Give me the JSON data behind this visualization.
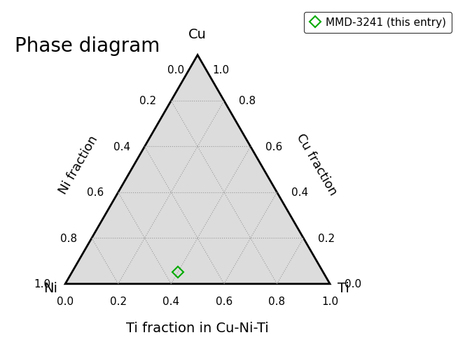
{
  "title": "Phase diagram",
  "xlabel": "Ti fraction in Cu-Ni-Ti",
  "corner_labels": {
    "top": "Cu",
    "bottom_left": "Ni",
    "bottom_right": "Ti"
  },
  "axis_labels_left": "Ni fraction",
  "axis_labels_right": "Cu fraction",
  "tick_values": [
    0.2,
    0.4,
    0.6,
    0.8
  ],
  "marker_Ti": 0.4,
  "marker_Ni": 0.55,
  "marker_Cu": 0.05,
  "marker_color": "#00aa00",
  "marker_size": 8,
  "legend_label": "MMD-3241 (this entry)",
  "background_color": "#dcdcdc",
  "grid_color": "#999999",
  "triangle_color": "black",
  "triangle_linewidth": 2.0,
  "font_size_title": 20,
  "font_size_corner": 14,
  "font_size_axis_label": 13,
  "font_size_ticks": 11
}
